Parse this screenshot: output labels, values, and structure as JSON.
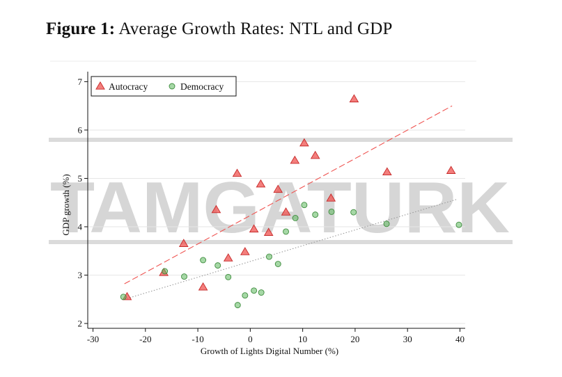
{
  "figure": {
    "label": "Figure 1:",
    "title": "Average Growth Rates: NTL and GDP"
  },
  "watermark": {
    "text": "TAMGATURK",
    "color": "#bdbdbd"
  },
  "chart_data": {
    "type": "scatter",
    "title": "Average Growth Rates: NTL and GDP",
    "xlabel": "Growth of Lights Digital Number (%)",
    "ylabel": "GDP growth (%)",
    "xlim": [
      -31,
      41
    ],
    "ylim": [
      1.9,
      7.15
    ],
    "xticks": [
      -30,
      -20,
      -10,
      0,
      10,
      20,
      30,
      40
    ],
    "yticks": [
      2,
      3,
      4,
      5,
      6,
      7
    ],
    "xtick_labels": [
      "-30",
      "-20",
      "-10",
      "0",
      "10",
      "20",
      "30",
      "40"
    ],
    "ytick_labels": [
      "2",
      "3",
      "4",
      "5",
      "6",
      "7"
    ],
    "grid": "horizontal",
    "legend_position": "top-left",
    "series": [
      {
        "name": "Autocracy",
        "marker": "triangle",
        "color": "#ef5350",
        "points": [
          [
            -23.5,
            2.55
          ],
          [
            -16.5,
            3.05
          ],
          [
            -12.7,
            3.65
          ],
          [
            -9.0,
            2.75
          ],
          [
            -6.5,
            4.35
          ],
          [
            -4.2,
            3.35
          ],
          [
            -1.0,
            3.48
          ],
          [
            -2.5,
            5.1
          ],
          [
            0.7,
            3.95
          ],
          [
            2.0,
            4.88
          ],
          [
            3.5,
            3.88
          ],
          [
            5.3,
            4.77
          ],
          [
            6.8,
            4.3
          ],
          [
            8.5,
            5.37
          ],
          [
            10.3,
            5.73
          ],
          [
            12.4,
            5.47
          ],
          [
            15.4,
            4.59
          ],
          [
            19.8,
            6.64
          ],
          [
            26.1,
            5.13
          ],
          [
            38.3,
            5.16
          ]
        ]
      },
      {
        "name": "Democracy",
        "marker": "circle",
        "color": "#5cb85c",
        "points": [
          [
            -24.2,
            2.55
          ],
          [
            -16.3,
            3.08
          ],
          [
            -12.6,
            2.97
          ],
          [
            -9.0,
            3.31
          ],
          [
            -6.2,
            3.2
          ],
          [
            -4.2,
            2.96
          ],
          [
            -2.4,
            2.38
          ],
          [
            -1.0,
            2.58
          ],
          [
            0.7,
            2.68
          ],
          [
            2.1,
            2.64
          ],
          [
            3.6,
            3.38
          ],
          [
            5.3,
            3.23
          ],
          [
            6.8,
            3.9
          ],
          [
            8.6,
            4.18
          ],
          [
            10.3,
            4.45
          ],
          [
            12.4,
            4.25
          ],
          [
            15.5,
            4.31
          ],
          [
            19.7,
            4.3
          ],
          [
            26.0,
            4.06
          ],
          [
            39.8,
            4.04
          ]
        ]
      }
    ],
    "fit_lines": [
      {
        "series": "Autocracy",
        "style": "dashed",
        "color": "#ef5350",
        "x": [
          -24,
          38.5
        ],
        "y": [
          2.82,
          6.5
        ]
      },
      {
        "series": "Democracy",
        "style": "dotted",
        "color": "#999999",
        "x": [
          -24,
          39.5
        ],
        "y": [
          2.5,
          4.57
        ]
      }
    ]
  }
}
